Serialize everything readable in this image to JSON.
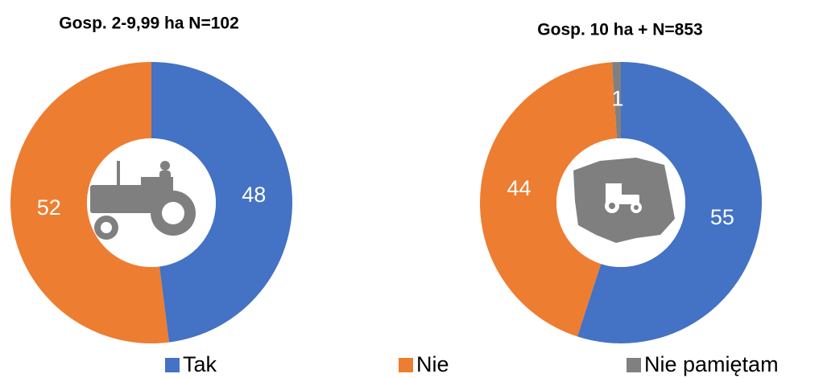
{
  "chart_data": [
    {
      "type": "donut",
      "title": "Gosp. 2-9,99 ha N=102",
      "categories": [
        "Tak",
        "Nie"
      ],
      "values": [
        48,
        52
      ],
      "colors": [
        "#4472c4",
        "#ed7d31"
      ]
    },
    {
      "type": "donut",
      "title": "Gosp.  10 ha + N=853",
      "categories": [
        "Tak",
        "Nie",
        "Nie pamiętam"
      ],
      "values": [
        55,
        44,
        1
      ],
      "colors": [
        "#4472c4",
        "#ed7d31",
        "#808080"
      ]
    }
  ]
}
